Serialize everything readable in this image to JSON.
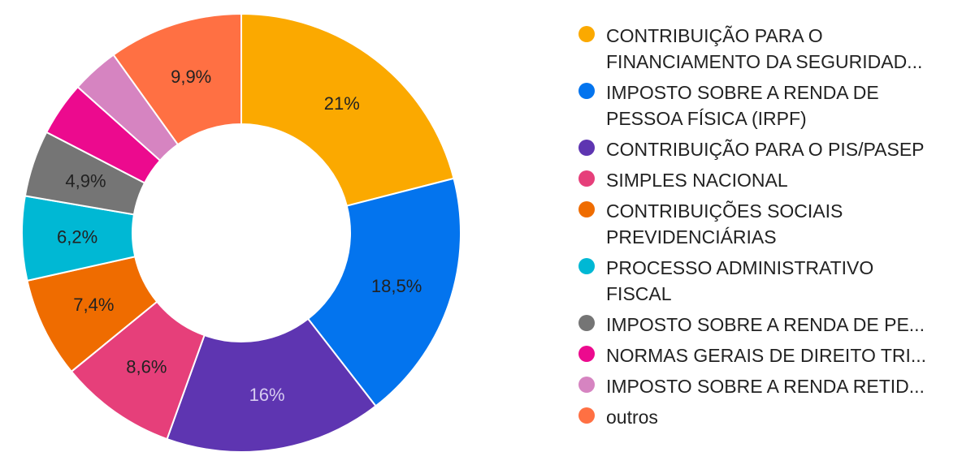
{
  "chart_data": {
    "type": "pie",
    "variant": "donut",
    "title": "",
    "legend_position": "right",
    "slices": [
      {
        "name": "CONTRIBUIÇÃO PARA O\nFINANCIAMENTO DA SEGURIDAD...",
        "value": 21,
        "label": "21%",
        "color": "#FBA900",
        "label_color": "#222222"
      },
      {
        "name": "IMPOSTO SOBRE A RENDA DE\nPESSOA FÍSICA (IRPF)",
        "value": 18.5,
        "label": "18,5%",
        "color": "#0374EE",
        "label_color": "#222222"
      },
      {
        "name": "CONTRIBUIÇÃO PARA O PIS/PASEP",
        "value": 16,
        "label": "16%",
        "color": "#5E35B1",
        "label_color": "#D7CCF0"
      },
      {
        "name": "SIMPLES NACIONAL",
        "value": 8.6,
        "label": "8,6%",
        "color": "#E63F7A",
        "label_color": "#222222"
      },
      {
        "name": "CONTRIBUIÇÕES SOCIAIS\nPREVIDENCIÁRIAS",
        "value": 7.4,
        "label": "7,4%",
        "color": "#EF6C00",
        "label_color": "#222222"
      },
      {
        "name": "PROCESSO ADMINISTRATIVO\nFISCAL",
        "value": 6.2,
        "label": "6,2%",
        "color": "#00B8D4",
        "label_color": "#222222"
      },
      {
        "name": "IMPOSTO SOBRE A RENDA DE PE...",
        "value": 4.9,
        "label": "4,9%",
        "color": "#757575",
        "label_color": "#222222"
      },
      {
        "name": "NORMAS GERAIS DE DIREITO TRI...",
        "value": 4.0,
        "label": "",
        "color": "#EC0A8E",
        "label_color": "#222222"
      },
      {
        "name": "IMPOSTO SOBRE A RENDA RETID...",
        "value": 3.5,
        "label": "",
        "color": "#D684C1",
        "label_color": "#222222"
      },
      {
        "name": "outros",
        "value": 9.9,
        "label": "9,9%",
        "color": "#FF7043",
        "label_color": "#222222"
      }
    ]
  }
}
